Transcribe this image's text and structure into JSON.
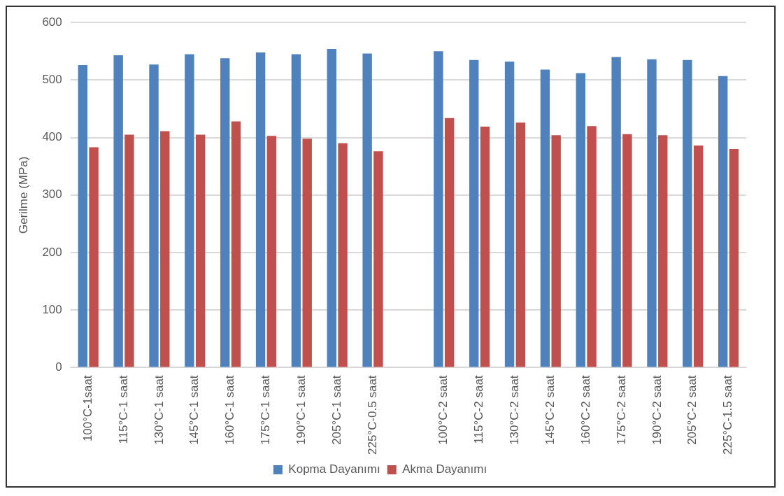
{
  "chart_data": {
    "type": "bar",
    "ylabel": "Gerilme (MPa)",
    "categories": [
      "100°C-1saat",
      "115°C-1 saat",
      "130°C-1 saat",
      "145°C-1 saat",
      "160°C-1 saat",
      "175°C-1 saat",
      "190°C-1 saat",
      "205°C-1 saat",
      "225°C-0.5 saat",
      null,
      "100°C-2 saat",
      "115°C-2 saat",
      "130°C-2 saat",
      "145°C-2 saat",
      "160°C-2 saat",
      "175°C-2 saat",
      "190°C-2 saat",
      "205°C-2 saat",
      "225°C-1.5 saat"
    ],
    "series": [
      {
        "name": "Kopma Dayanımı",
        "color": "#4f81bd",
        "values": [
          526,
          543,
          527,
          545,
          538,
          548,
          545,
          554,
          546,
          null,
          550,
          535,
          532,
          518,
          512,
          540,
          536,
          535,
          507
        ]
      },
      {
        "name": "Akma Dayanımı",
        "color": "#c0504d",
        "values": [
          383,
          405,
          411,
          405,
          428,
          403,
          398,
          390,
          376,
          null,
          434,
          419,
          426,
          404,
          420,
          406,
          404,
          386,
          380
        ]
      }
    ],
    "ylim": [
      0,
      600
    ],
    "yticks": [
      0,
      100,
      200,
      300,
      400,
      500,
      600
    ],
    "grid": "y",
    "legend": "bottom"
  }
}
